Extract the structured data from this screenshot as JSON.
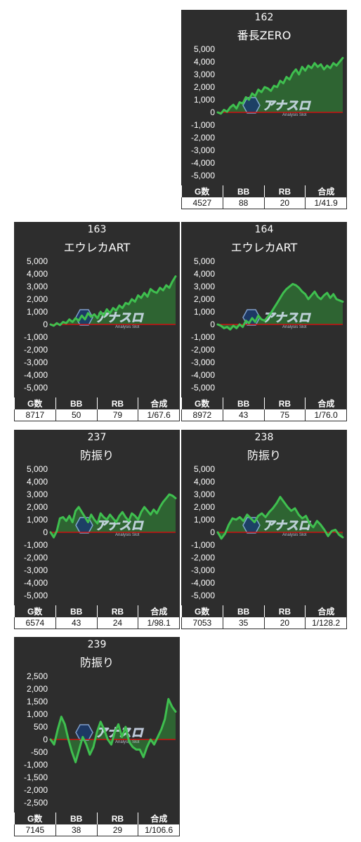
{
  "machines": [
    {
      "id": "162",
      "name": "番長ZERO",
      "stats": {
        "g": "4527",
        "bb": "88",
        "rb": "20",
        "gousei": "1/41.9"
      },
      "chart": {
        "type": "line",
        "ylim": [
          -5000,
          5000
        ],
        "yticks": [
          "5,000",
          "4,000",
          "3,000",
          "2,000",
          "1,000",
          "0",
          "-1,000",
          "-2,000",
          "-3,000",
          "-4,000",
          "-5,000"
        ],
        "x": [
          0,
          1,
          2,
          3,
          4,
          5,
          6,
          7,
          8,
          9,
          10,
          11,
          12,
          13,
          14,
          15,
          16,
          17,
          18,
          19,
          20,
          21,
          22,
          23,
          24,
          25,
          26,
          27,
          28,
          29,
          30,
          31,
          32,
          33,
          34,
          35,
          36,
          37,
          38,
          39,
          40
        ],
        "y": [
          0,
          -100,
          200,
          50,
          400,
          600,
          300,
          800,
          700,
          1200,
          1000,
          1500,
          1300,
          1800,
          1600,
          2000,
          1900,
          1700,
          2100,
          2000,
          2500,
          2300,
          2800,
          2600,
          3100,
          3400,
          3000,
          3600,
          3300,
          3700,
          3500,
          3900,
          3600,
          3800,
          3400,
          3700,
          3500,
          3900,
          3700,
          4000,
          4300
        ]
      }
    },
    {
      "id": "163",
      "name": "エウレカART",
      "stats": {
        "g": "8717",
        "bb": "50",
        "rb": "79",
        "gousei": "1/67.6"
      },
      "chart": {
        "type": "line",
        "ylim": [
          -5000,
          5000
        ],
        "yticks": [
          "5,000",
          "4,000",
          "3,000",
          "2,000",
          "1,000",
          "0",
          "-1,000",
          "-2,000",
          "-3,000",
          "-4,000",
          "-5,000"
        ],
        "x": [
          0,
          1,
          2,
          3,
          4,
          5,
          6,
          7,
          8,
          9,
          10,
          11,
          12,
          13,
          14,
          15,
          16,
          17,
          18,
          19,
          20,
          21,
          22,
          23,
          24,
          25,
          26,
          27,
          28,
          29,
          30,
          31,
          32,
          33,
          34,
          35,
          36,
          37,
          38,
          39,
          40
        ],
        "y": [
          0,
          -100,
          100,
          -50,
          200,
          100,
          400,
          200,
          500,
          300,
          700,
          400,
          900,
          600,
          800,
          500,
          1000,
          700,
          1200,
          900,
          1300,
          1100,
          1500,
          1300,
          1700,
          1600,
          2000,
          1800,
          2300,
          2100,
          2500,
          2200,
          2800,
          2600,
          2500,
          2900,
          2700,
          3100,
          2900,
          3400,
          3800
        ]
      }
    },
    {
      "id": "164",
      "name": "エウレカART",
      "stats": {
        "g": "8972",
        "bb": "43",
        "rb": "75",
        "gousei": "1/76.0"
      },
      "chart": {
        "type": "line",
        "ylim": [
          -5000,
          5000
        ],
        "yticks": [
          "5,000",
          "4,000",
          "3,000",
          "2,000",
          "1,000",
          "0",
          "-1,000",
          "-2,000",
          "-3,000",
          "-4,000",
          "-5,000"
        ],
        "x": [
          0,
          1,
          2,
          3,
          4,
          5,
          6,
          7,
          8,
          9,
          10,
          11,
          12,
          13,
          14,
          15,
          16,
          17,
          18,
          19,
          20,
          21,
          22,
          23,
          24,
          25,
          26,
          27,
          28,
          29,
          30,
          31,
          32,
          33,
          34,
          35,
          36,
          37,
          38,
          39,
          40
        ],
        "y": [
          0,
          -100,
          -300,
          -200,
          -400,
          -100,
          -300,
          0,
          -200,
          300,
          100,
          500,
          200,
          700,
          400,
          300,
          600,
          900,
          1300,
          1700,
          2100,
          2500,
          2800,
          3000,
          3200,
          3100,
          2900,
          2600,
          2400,
          2000,
          2300,
          2600,
          2200,
          2000,
          2300,
          2500,
          2100,
          2400,
          2000,
          1900,
          1800
        ]
      }
    },
    {
      "id": "237",
      "name": "防振り",
      "stats": {
        "g": "6574",
        "bb": "43",
        "rb": "24",
        "gousei": "1/98.1"
      },
      "chart": {
        "type": "line",
        "ylim": [
          -5000,
          5000
        ],
        "yticks": [
          "5,000",
          "4,000",
          "3,000",
          "2,000",
          "1,000",
          "0",
          "-1,000",
          "-2,000",
          "-3,000",
          "-4,000",
          "-5,000"
        ],
        "x": [
          0,
          1,
          2,
          3,
          4,
          5,
          6,
          7,
          8,
          9,
          10,
          11,
          12,
          13,
          14,
          15,
          16,
          17,
          18,
          19,
          20,
          21,
          22,
          23,
          24,
          25,
          26,
          27,
          28,
          29,
          30,
          31,
          32,
          33,
          34,
          35,
          36,
          37,
          38,
          39,
          40
        ],
        "y": [
          0,
          -400,
          100,
          1100,
          1200,
          900,
          1300,
          800,
          1700,
          2000,
          1600,
          1200,
          800,
          1400,
          1000,
          700,
          1500,
          1200,
          1000,
          1400,
          1100,
          800,
          1300,
          1600,
          1200,
          900,
          1500,
          1300,
          1000,
          1600,
          2000,
          1700,
          1400,
          1800,
          1500,
          2000,
          2400,
          2700,
          3000,
          2900,
          2700
        ]
      }
    },
    {
      "id": "238",
      "name": "防振り",
      "stats": {
        "g": "7053",
        "bb": "35",
        "rb": "20",
        "gousei": "1/128.2"
      },
      "chart": {
        "type": "line",
        "ylim": [
          -5000,
          5000
        ],
        "yticks": [
          "5,000",
          "4,000",
          "3,000",
          "2,000",
          "1,000",
          "0",
          "-1,000",
          "-2,000",
          "-3,000",
          "-4,000",
          "-5,000"
        ],
        "x": [
          0,
          1,
          2,
          3,
          4,
          5,
          6,
          7,
          8,
          9,
          10,
          11,
          12,
          13,
          14,
          15,
          16,
          17,
          18,
          19,
          20,
          21,
          22,
          23,
          24,
          25,
          26,
          27,
          28,
          29,
          30,
          31,
          32,
          33,
          34
        ],
        "y": [
          0,
          -500,
          -100,
          600,
          1100,
          1000,
          1200,
          900,
          1400,
          1100,
          800,
          1300,
          1500,
          1200,
          1600,
          1900,
          2300,
          2800,
          2400,
          2000,
          1700,
          1900,
          1400,
          1100,
          1300,
          700,
          400,
          900,
          600,
          200,
          -300,
          100,
          200,
          -200,
          -400
        ]
      }
    },
    {
      "id": "239",
      "name": "防振り",
      "stats": {
        "g": "7145",
        "bb": "38",
        "rb": "29",
        "gousei": "1/106.6"
      },
      "chart": {
        "type": "line",
        "ylim": [
          -2500,
          2500
        ],
        "yticks": [
          "2,500",
          "2,000",
          "1,500",
          "1,000",
          "500",
          "0",
          "-500",
          "-1,000",
          "-1,500",
          "-2,000",
          "-2,500"
        ],
        "x": [
          0,
          1,
          2,
          3,
          4,
          5,
          6,
          7,
          8,
          9,
          10,
          11,
          12,
          13,
          14,
          15,
          16,
          17,
          18,
          19,
          20,
          21,
          22,
          23,
          24,
          25,
          26,
          27,
          28,
          29,
          30,
          31,
          32,
          33,
          34,
          35
        ],
        "y": [
          0,
          -200,
          400,
          900,
          600,
          0,
          -500,
          -900,
          -400,
          100,
          -200,
          -600,
          -300,
          300,
          700,
          400,
          0,
          -200,
          300,
          600,
          100,
          500,
          -100,
          -300,
          -400,
          -400,
          -700,
          -300,
          0,
          -200,
          100,
          400,
          800,
          1600,
          1300,
          1100
        ]
      }
    }
  ],
  "logo": {
    "main": "アナスロ",
    "sub": "Analysis Slot"
  },
  "stat_headers": {
    "g": "G数",
    "bb": "BB",
    "rb": "RB",
    "gousei": "合成"
  },
  "colors": {
    "panel_bg": "#2d2d2d",
    "line": "#3fbf4f",
    "fill": "#2f6f34",
    "zero_line": "#cc1111"
  }
}
